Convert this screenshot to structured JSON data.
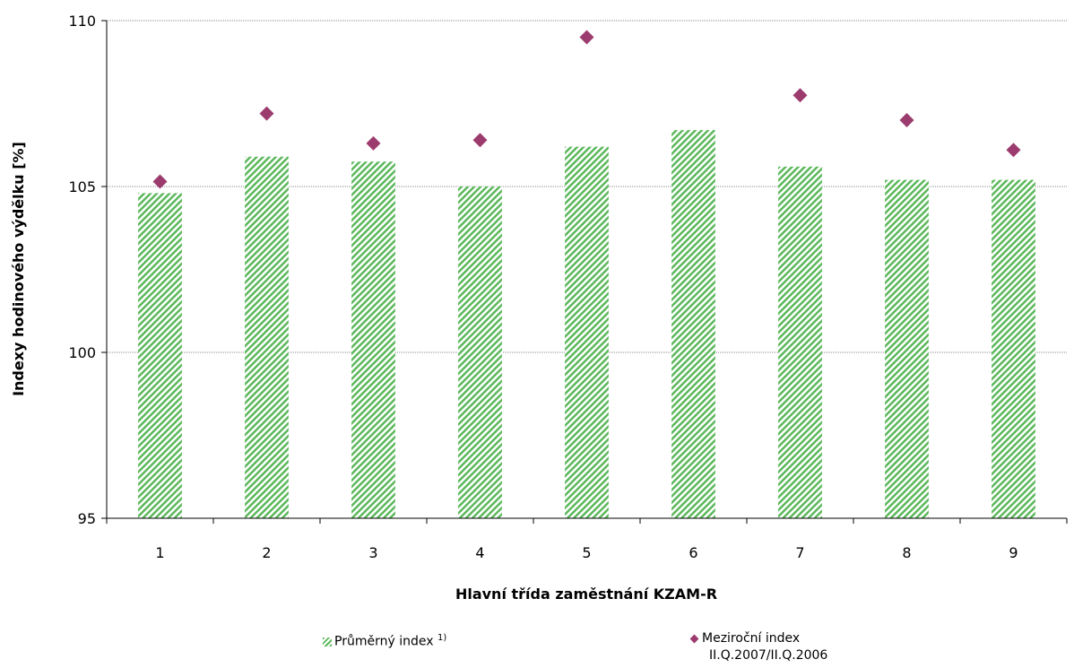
{
  "chart_data": {
    "type": "bar",
    "categories": [
      "1",
      "2",
      "3",
      "4",
      "5",
      "6",
      "7",
      "8",
      "9"
    ],
    "series": [
      {
        "name": "Průměrný index",
        "kind": "bar",
        "values": [
          104.8,
          105.9,
          105.75,
          105.0,
          106.2,
          106.7,
          105.6,
          105.2,
          105.2
        ]
      },
      {
        "name": "Meziroční index II.Q.2007/II.Q.2006",
        "kind": "scatter",
        "values": [
          105.15,
          107.2,
          106.3,
          106.4,
          109.5,
          null,
          107.75,
          107.0,
          106.1
        ]
      }
    ],
    "ylim": [
      95,
      110
    ],
    "yticks": [
      "95",
      "100",
      "105",
      "110"
    ],
    "xlabel": "Hlavní třída zaměstnání KZAM-R",
    "ylabel": "Indexy hodinového výdělku [%]",
    "grid": true,
    "legend_position": "bottom"
  },
  "legend": {
    "bar_label": "Průměrný index ",
    "bar_superscript": "1)",
    "marker_label_line1": "Meziroční index",
    "marker_label_line2": "II.Q.2007/II.Q.2006"
  },
  "colors": {
    "bar": "#5cb85c",
    "marker": "#9c3b6e",
    "grid": "#8c8c8c",
    "axis": "#000000"
  }
}
